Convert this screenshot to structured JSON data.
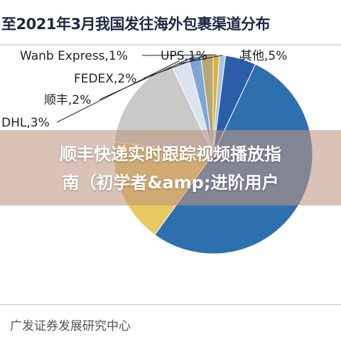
{
  "header": {
    "title": "至2021年3月我国发往海外包裹渠道分布"
  },
  "overlay": {
    "line1": "顺丰快递实时跟踪视频播放指",
    "line2": "南（初学者&amp;进阶用户"
  },
  "footer": {
    "source": "广发证券发展研究中心"
  },
  "chart_data": {
    "type": "pie",
    "title": "至2021年3月我国发往海外包裹渠道分布",
    "slices": [
      {
        "label": "Wanb Express,1%",
        "value": 1,
        "color": "#e0b030"
      },
      {
        "label": "UPS,1%",
        "value": 1,
        "color": "#a8c4e0"
      },
      {
        "label": "其他,5%",
        "value": 5,
        "color": "#2a5fa8"
      },
      {
        "label": "",
        "value": 53,
        "color": "#2e6fae"
      },
      {
        "label": "",
        "value": 17,
        "color": "#e8c860"
      },
      {
        "label": "",
        "value": 16,
        "color": "#c9c9c9"
      },
      {
        "label": "DHL,3%",
        "value": 3,
        "color": "#d9e4ef"
      },
      {
        "label": "顺丰,2%",
        "value": 2,
        "color": "#7da6d6"
      },
      {
        "label": "FEDEX,2%",
        "value": 2,
        "color": "#b6a77a"
      }
    ]
  }
}
